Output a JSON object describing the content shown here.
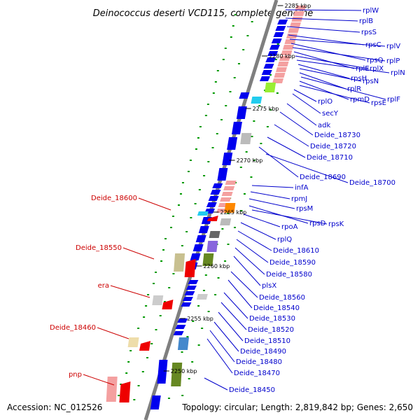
{
  "title": "Deinococcus deserti VCD115, complete genome",
  "footer": {
    "accession": "Accession: NC_012526",
    "topology": "Topology: circular; Length: 2,819,842 bp; Genes: 2,650"
  },
  "colors": {
    "backbone": "#7f7f7f",
    "forward_label": "#0000cc",
    "reverse_label": "#cc0000",
    "cds_forward": "#0000ee",
    "ribosomal": "#f4a0a0",
    "rna": "#ee0000",
    "other_category": "#c8c090",
    "tick_dot": "#009900"
  },
  "ticks": [
    "2285 kbp",
    "2280 kbp",
    "2275 kbp",
    "2270 kbp",
    "2265 kbp",
    "2260 kbp",
    "2255 kbp",
    "2250 kbp"
  ],
  "right_labels": [
    "rplW",
    "rplB",
    "rpsS",
    "rpsC",
    "rplV",
    "rpsQ",
    "rplP",
    "rplE",
    "rplX",
    "rplN",
    "rpsH",
    "rpsN",
    "rplR",
    "rplF",
    "rpmD",
    "rpsE",
    "rplO",
    "secY",
    "adk",
    "Deide_18730",
    "Deide_18720",
    "Deide_18710",
    "Deide_18690",
    "Deide_18700",
    "infA",
    "rpmJ",
    "rpsM",
    "rpsD",
    "rpsK",
    "rpoA",
    "rplQ",
    "Deide_18610",
    "Deide_18590",
    "Deide_18580",
    "plsX",
    "Deide_18560",
    "Deide_18540",
    "Deide_18530",
    "Deide_18520",
    "Deide_18510",
    "Deide_18490",
    "Deide_18480",
    "Deide_18470",
    "Deide_18450"
  ],
  "left_labels": [
    "Deide_18600",
    "Deide_18550",
    "era",
    "Deide_18460",
    "pnp"
  ]
}
